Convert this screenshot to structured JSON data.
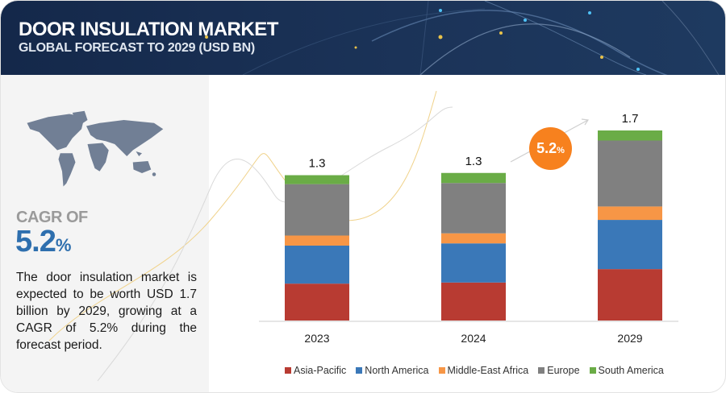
{
  "header": {
    "title": "DOOR INSULATION MARKET",
    "subtitle": "GLOBAL FORECAST TO 2029 (USD BN)"
  },
  "summary": {
    "cagr_label": "CAGR OF",
    "cagr_value": "5.2",
    "cagr_unit": "%",
    "description": "The door insulation market is expected to be worth USD 1.7 billion by 2029, growing at a CAGR of 5.2% during the forecast period."
  },
  "badge": {
    "value": "5.2",
    "unit": "%",
    "color": "#f7811e"
  },
  "chart_data": {
    "type": "bar",
    "stacked": true,
    "title": "Door Insulation Market, Global Forecast to 2029 (USD BN)",
    "xlabel": "",
    "ylabel": "",
    "ylim": [
      0,
      1.7
    ],
    "grid": false,
    "legend_position": "bottom",
    "categories": [
      "2023",
      "2024",
      "2029"
    ],
    "totals": [
      "1.3",
      "1.3",
      "1.7"
    ],
    "series": [
      {
        "name": "Asia-Pacific",
        "color": "#b83b32",
        "values": [
          0.33,
          0.34,
          0.46
        ]
      },
      {
        "name": "North America",
        "color": "#3a78b8",
        "values": [
          0.34,
          0.35,
          0.44
        ]
      },
      {
        "name": "Middle-East Africa",
        "color": "#f79646",
        "values": [
          0.09,
          0.09,
          0.12
        ]
      },
      {
        "name": "Europe",
        "color": "#808080",
        "values": [
          0.46,
          0.45,
          0.59
        ]
      },
      {
        "name": "South America",
        "color": "#6aac46",
        "values": [
          0.08,
          0.09,
          0.09
        ]
      }
    ]
  }
}
